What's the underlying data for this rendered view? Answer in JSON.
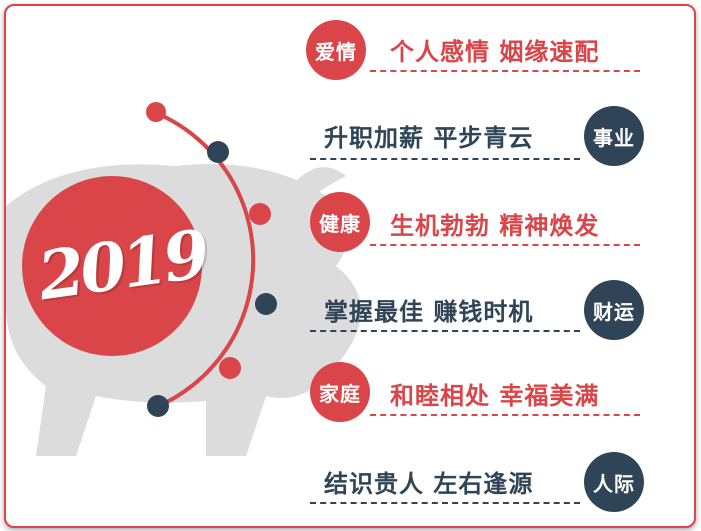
{
  "year": "2019",
  "colors": {
    "accent_red": "#d94548",
    "accent_navy": "#2f4557",
    "pig_gray": "#dcdcdc"
  },
  "items": [
    {
      "label": "爱情",
      "text": "个人感情 姻缘速配",
      "color": "red"
    },
    {
      "label": "事业",
      "text": "升职加薪 平步青云",
      "color": "navy"
    },
    {
      "label": "健康",
      "text": "生机勃勃 精神焕发",
      "color": "red"
    },
    {
      "label": "财运",
      "text": "掌握最佳 赚钱时机",
      "color": "navy"
    },
    {
      "label": "家庭",
      "text": "和睦相处 幸福美满",
      "color": "red"
    },
    {
      "label": "人际",
      "text": "结识贵人 左右逢源",
      "color": "navy"
    }
  ]
}
